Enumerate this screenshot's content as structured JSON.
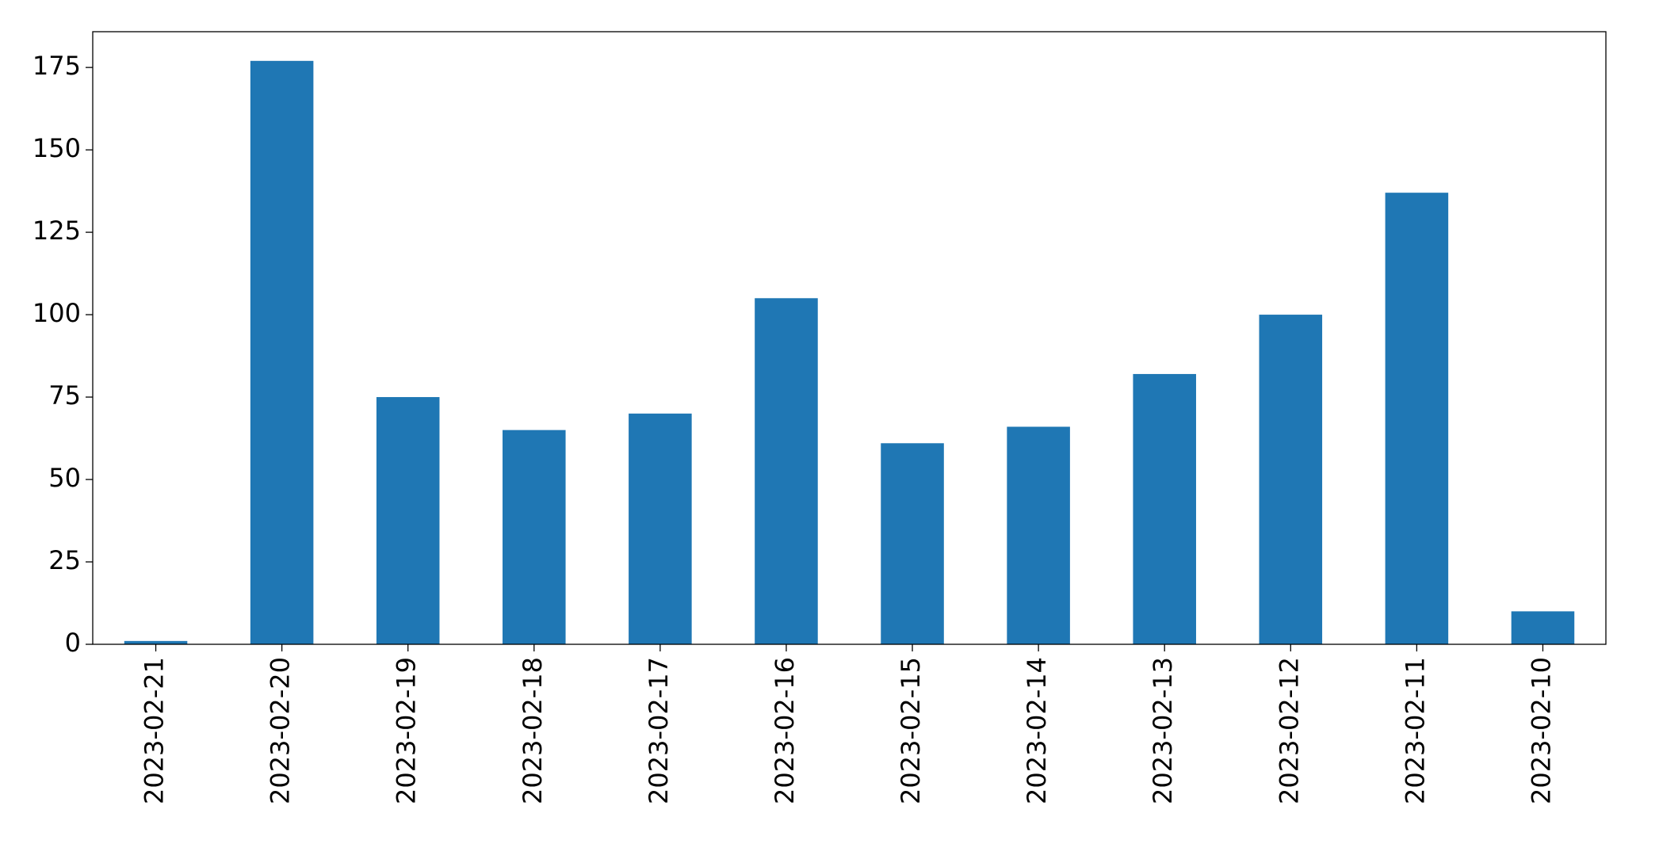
{
  "chart_data": {
    "type": "bar",
    "categories": [
      "2023-02-21",
      "2023-02-20",
      "2023-02-19",
      "2023-02-18",
      "2023-02-17",
      "2023-02-16",
      "2023-02-15",
      "2023-02-14",
      "2023-02-13",
      "2023-02-12",
      "2023-02-11",
      "2023-02-10"
    ],
    "values": [
      1,
      177,
      75,
      65,
      70,
      105,
      61,
      66,
      82,
      100,
      137,
      10
    ],
    "color": "#1f77b4",
    "ylim": [
      0,
      185.85
    ],
    "yticks": [
      0,
      25,
      50,
      75,
      100,
      125,
      150,
      175
    ],
    "grid": false
  }
}
